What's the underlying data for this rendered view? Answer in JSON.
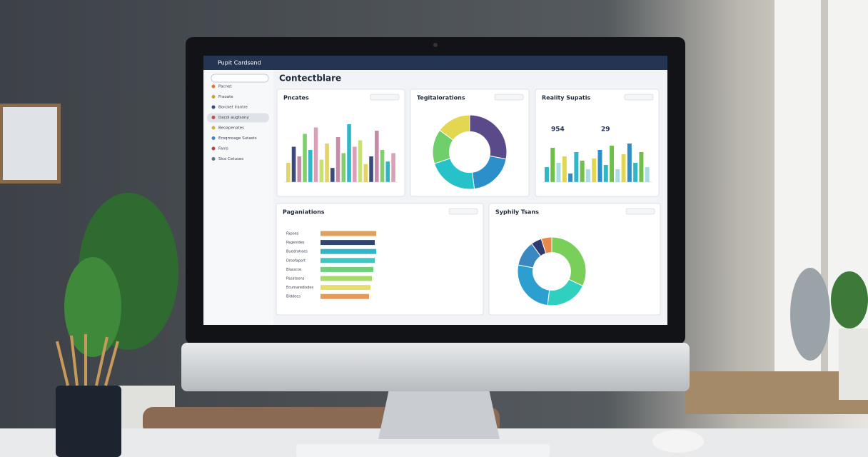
{
  "header": {
    "title": "Pupit Cardsend"
  },
  "sidebar": {
    "items": [
      "Pacnet",
      "Fraoate",
      "Borcket lrantre",
      "Dacol augtsony",
      "Beoapenates",
      "Eroqmoage Sutasts",
      "Fanls",
      "Sico Cetuses"
    ]
  },
  "page_title": "Contectblare",
  "panels": [
    {
      "title": "Pncates",
      "type": "bar",
      "values": [
        30,
        55,
        40,
        75,
        50,
        85,
        35,
        60,
        22,
        70,
        45,
        90,
        55,
        65,
        28,
        40,
        80,
        50,
        32,
        45
      ],
      "palette": [
        "#e3d36a",
        "#3a4a7a",
        "#c98aa8",
        "#7fcf6a",
        "#2fb7c9",
        "#d9a0b8",
        "#c9e07a"
      ]
    },
    {
      "title": "Tegitalorations",
      "type": "donut",
      "values": [
        28,
        20,
        22,
        15,
        15
      ],
      "palette": [
        "#5b4a8a",
        "#2d8fc9",
        "#26c2c9",
        "#6fcf6a",
        "#e3d650"
      ]
    },
    {
      "title": "Reality Supatis",
      "type": "bar",
      "stats": [
        "954",
        "29"
      ],
      "values": [
        35,
        80,
        45,
        60,
        20,
        70,
        50,
        30,
        55,
        75,
        40,
        85,
        30,
        65,
        90,
        45,
        70,
        35
      ],
      "palette": [
        "#2fb7c9",
        "#6fbf4a",
        "#a8dde6",
        "#e3d650",
        "#2d8fc9"
      ]
    },
    {
      "title": "Paganiations",
      "type": "hbar",
      "categories": [
        "Fapoes",
        "Pagenides",
        "Buedrahaes",
        "Droofaport",
        "Biasscos",
        "Pasatoons",
        "Ecumaredisdes",
        "Biddees"
      ],
      "values": [
        78,
        76,
        78,
        76,
        74,
        72,
        70,
        68
      ],
      "palette": [
        "#e0a060",
        "#33476e",
        "#2fb7c9",
        "#3fc7c3",
        "#6fcf7a",
        "#a6db6a",
        "#e6de6a",
        "#e59a5a"
      ]
    },
    {
      "title": "Syphily Tsans",
      "type": "donut",
      "values": [
        32,
        20,
        26,
        12,
        5,
        5
      ],
      "palette": [
        "#7acf5a",
        "#2fd0c0",
        "#2a9fd0",
        "#3a88c0",
        "#2e3b6e",
        "#e8894a"
      ]
    }
  ]
}
